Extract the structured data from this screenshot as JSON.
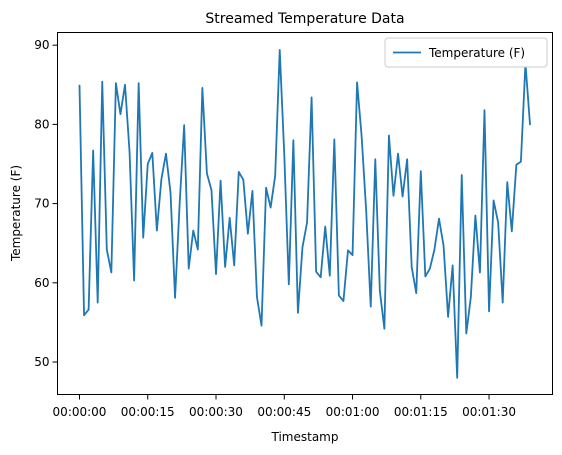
{
  "chart_data": {
    "type": "line",
    "title": "Streamed Temperature Data",
    "xlabel": "Timestamp",
    "ylabel": "Temperature (F)",
    "grid": false,
    "legend": {
      "placement": "top-right"
    },
    "ylim": [
      45.9,
      91.6
    ],
    "y_ticks": [
      50,
      60,
      70,
      80,
      90
    ],
    "x_ticks": [
      "00:00:00",
      "00:00:15",
      "00:00:30",
      "00:00:45",
      "00:01:00",
      "00:01:15",
      "00:01:30"
    ],
    "series": [
      {
        "name": "Temperature (F)",
        "color": "#1f77b4",
        "x": [
          "00:00:00",
          "00:00:01",
          "00:00:02",
          "00:00:03",
          "00:00:04",
          "00:00:05",
          "00:00:06",
          "00:00:07",
          "00:00:08",
          "00:00:09",
          "00:00:10",
          "00:00:11",
          "00:00:12",
          "00:00:13",
          "00:00:14",
          "00:00:15",
          "00:00:16",
          "00:00:17",
          "00:00:18",
          "00:00:19",
          "00:00:20",
          "00:00:21",
          "00:00:22",
          "00:00:23",
          "00:00:24",
          "00:00:25",
          "00:00:26",
          "00:00:27",
          "00:00:28",
          "00:00:29",
          "00:00:30",
          "00:00:31",
          "00:00:32",
          "00:00:33",
          "00:00:34",
          "00:00:35",
          "00:00:36",
          "00:00:37",
          "00:00:38",
          "00:00:39",
          "00:00:40",
          "00:00:41",
          "00:00:42",
          "00:00:43",
          "00:00:44",
          "00:00:45",
          "00:00:46",
          "00:00:47",
          "00:00:48",
          "00:00:49",
          "00:00:50",
          "00:00:51",
          "00:00:52",
          "00:00:53",
          "00:00:54",
          "00:00:55",
          "00:00:56",
          "00:00:57",
          "00:00:58",
          "00:00:59",
          "00:01:00",
          "00:01:01",
          "00:01:02",
          "00:01:03",
          "00:01:04",
          "00:01:05",
          "00:01:06",
          "00:01:07",
          "00:01:08",
          "00:01:09",
          "00:01:10",
          "00:01:11",
          "00:01:12",
          "00:01:13",
          "00:01:14",
          "00:01:15",
          "00:01:16",
          "00:01:17",
          "00:01:18",
          "00:01:19",
          "00:01:20",
          "00:01:21",
          "00:01:22",
          "00:01:23",
          "00:01:24",
          "00:01:25",
          "00:01:26",
          "00:01:27",
          "00:01:28",
          "00:01:29",
          "00:01:30",
          "00:01:31",
          "00:01:32",
          "00:01:33",
          "00:01:34",
          "00:01:35",
          "00:01:36",
          "00:01:37",
          "00:01:38",
          "00:01:39"
        ],
        "values": [
          84.9,
          55.9,
          56.6,
          76.7,
          57.5,
          85.4,
          64.2,
          61.3,
          85.2,
          81.3,
          85.0,
          76.5,
          60.3,
          85.2,
          65.7,
          75.0,
          76.4,
          66.6,
          73.1,
          76.3,
          71.4,
          58.1,
          69.9,
          79.9,
          61.8,
          66.6,
          64.2,
          84.6,
          73.8,
          71.7,
          61.1,
          72.9,
          62.0,
          68.2,
          62.2,
          74.0,
          73.0,
          66.2,
          71.6,
          58.2,
          54.6,
          72.0,
          69.5,
          73.5,
          89.4,
          76.2,
          59.8,
          78.0,
          56.2,
          64.5,
          67.6,
          83.4,
          61.4,
          60.7,
          67.1,
          60.9,
          78.1,
          58.4,
          57.7,
          64.1,
          63.5,
          85.3,
          78.5,
          69.1,
          57.0,
          75.6,
          59.0,
          54.2,
          78.6,
          71.0,
          76.3,
          70.9,
          75.6,
          62.0,
          58.7,
          74.1,
          60.8,
          61.8,
          64.2,
          68.1,
          64.7,
          55.7,
          62.2,
          48.0,
          73.6,
          53.6,
          58.2,
          68.5,
          61.3,
          81.8,
          56.4,
          70.4,
          67.6,
          57.5,
          72.7,
          66.5,
          74.9,
          75.3,
          87.7,
          80.0
        ]
      }
    ]
  }
}
